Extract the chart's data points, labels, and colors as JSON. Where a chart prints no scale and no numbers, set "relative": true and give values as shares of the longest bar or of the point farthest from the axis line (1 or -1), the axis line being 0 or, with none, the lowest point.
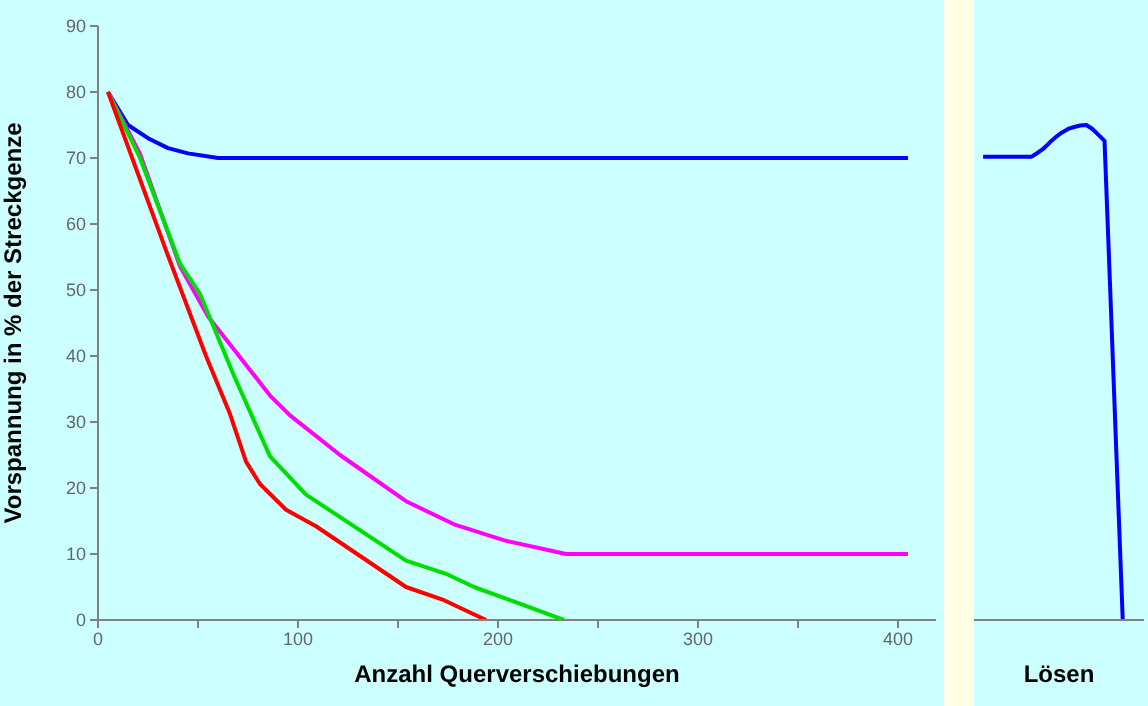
{
  "chart_data": [
    {
      "type": "line",
      "xlabel": "Anzahl Querverschiebungen",
      "ylabel": "Vorspannung in % der Streckgenze",
      "xlim": [
        0,
        419
      ],
      "xticks": [
        0,
        {
          "value": 50,
          "label": null
        },
        100,
        {
          "value": 150,
          "label": null
        },
        200,
        {
          "value": 250,
          "label": null
        },
        300,
        {
          "value": 350,
          "label": null
        },
        400
      ],
      "ylim": [
        0,
        90
      ],
      "yticks": [
        0,
        10,
        20,
        30,
        40,
        50,
        60,
        70,
        80,
        90
      ],
      "grid": false,
      "series": [
        {
          "color": "#0000ff",
          "x": [
            5,
            15,
            25,
            35,
            45,
            60,
            405
          ],
          "values": [
            80,
            75,
            73,
            71.5,
            70.7,
            70,
            70
          ]
        },
        {
          "color": "#ff00ff",
          "x": [
            5,
            21,
            41,
            55,
            68,
            86,
            96,
            121,
            154,
            178,
            204,
            234,
            405
          ],
          "values": [
            80,
            70.6,
            53.6,
            46,
            41,
            34,
            31,
            25,
            18,
            14.5,
            12,
            10,
            10
          ]
        },
        {
          "color": "#00dd00",
          "x": [
            5,
            21,
            41,
            51,
            68,
            86,
            104,
            154,
            174,
            188,
            233
          ],
          "values": [
            80,
            70,
            54,
            49.4,
            37,
            24.8,
            19,
            9,
            7,
            5,
            0
          ]
        },
        {
          "color": "#ff0000",
          "x": [
            5,
            34,
            54,
            66,
            74,
            81,
            94,
            109,
            154,
            173,
            194
          ],
          "values": [
            80,
            56,
            40,
            31.2,
            24,
            20.6,
            16.7,
            14.2,
            5,
            3,
            0
          ]
        }
      ]
    },
    {
      "type": "line",
      "xlabel": "Lösen",
      "categories": [
        null,
        null,
        null,
        null,
        null,
        null,
        null,
        null,
        null,
        null,
        null,
        null,
        null,
        null,
        null,
        null,
        null,
        null,
        null,
        null,
        null,
        null,
        null,
        null
      ],
      "relative": true,
      "series": [
        {
          "color": "#0000ff",
          "values": [
            0.936,
            0.936,
            0.936,
            0.936,
            0.936,
            0.936,
            0.936,
            0.936,
            0.936,
            0.944,
            0.953,
            0.965,
            0.976,
            0.985,
            0.992,
            0.996,
            0.999,
            1,
            0.992,
            0.98,
            0.968,
            0.646,
            0.321,
            0
          ]
        }
      ]
    }
  ]
}
